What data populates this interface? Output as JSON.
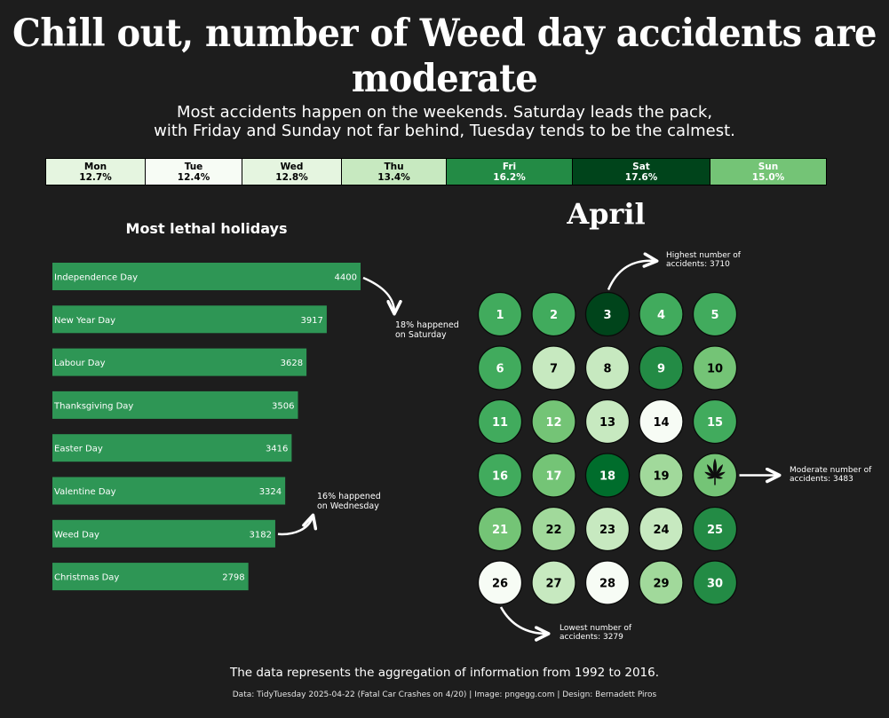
{
  "title": "Chill out, number of Weed day accidents are moderate",
  "subtitle": "Most accidents happen on the weekends.  Saturday leads the pack,\nwith Friday and Sunday not far behind, Tuesday tends to be the calmest.",
  "footnote": "The data represents the aggregation of information from 1992 to 2016.",
  "credits": "Data: TidyTuesday 2025-04-22 (Fatal Car Crashes on 4/20) | Image: pngegg.com | Design: Bernadett Piros",
  "colors": {
    "background": "#1d1d1d",
    "bar": "#2e9655",
    "scale": [
      "#f7fcf5",
      "#e5f5e0",
      "#c7e9c0",
      "#a1d99b",
      "#74c476",
      "#41ab5d",
      "#238b45",
      "#006d2c",
      "#00441b"
    ]
  },
  "chart_data": [
    {
      "type": "heatmap",
      "categories": [
        "Mon",
        "Tue",
        "Wed",
        "Thu",
        "Fri",
        "Sat",
        "Sun"
      ],
      "values": [
        12.7,
        12.4,
        12.8,
        13.4,
        16.2,
        17.6,
        15.0
      ],
      "value_labels": [
        "12.7%",
        "12.4%",
        "12.8%",
        "13.4%",
        "16.2%",
        "17.6%",
        "15.0%"
      ]
    },
    {
      "type": "bar",
      "title": "Most lethal holidays",
      "categories": [
        "Independence Day",
        "New Year Day",
        "Labour Day",
        "Thanksgiving Day",
        "Easter Day",
        "Valentine Day",
        "Weed Day",
        "Christmas Day"
      ],
      "values": [
        4400,
        3917,
        3628,
        3506,
        3416,
        3324,
        3182,
        2798
      ],
      "annotations": [
        {
          "text": "18% happened\non Saturday",
          "category": "Independence Day"
        },
        {
          "text": "16% happened\non Wednesday",
          "category": "Weed Day"
        }
      ]
    },
    {
      "type": "heatmap",
      "title": "April",
      "days": [
        1,
        2,
        3,
        4,
        5,
        6,
        7,
        8,
        9,
        10,
        11,
        12,
        13,
        14,
        15,
        16,
        17,
        18,
        19,
        20,
        21,
        22,
        23,
        24,
        25,
        26,
        27,
        28,
        29,
        30
      ],
      "values": [
        3560,
        3535,
        3710,
        3545,
        3560,
        3545,
        3395,
        3380,
        3620,
        3470,
        3555,
        3510,
        3405,
        3300,
        3560,
        3560,
        3520,
        3660,
        3440,
        3483,
        3505,
        3430,
        3390,
        3390,
        3600,
        3279,
        3380,
        3285,
        3440,
        3620
      ],
      "highlight_day": 20,
      "annotations": [
        {
          "text": "Highest number of\naccidents: 3710",
          "day": 3
        },
        {
          "text": "Moderate number of\naccidents: 3483",
          "day": 20
        },
        {
          "text": "Lowest number of\naccidents: 3279",
          "day": 26
        }
      ]
    }
  ]
}
